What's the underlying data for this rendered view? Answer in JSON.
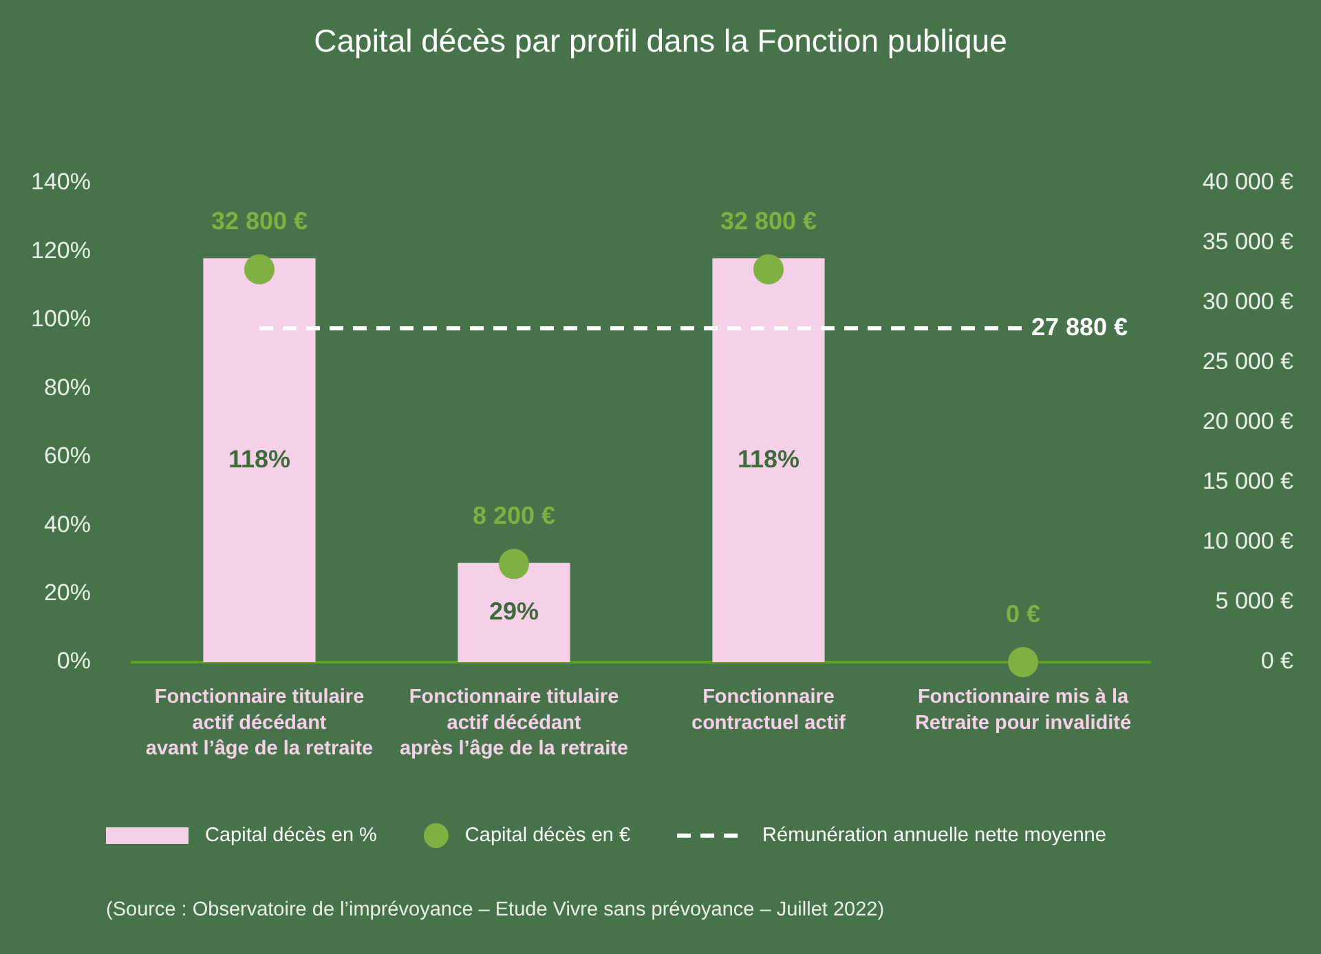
{
  "chart_data": {
    "type": "bar",
    "title": "Capital décès par profil dans la Fonction publique",
    "categories": [
      "Fonctionnaire titulaire\nactif décédant\navant l’âge de la retraite",
      "Fonctionnaire titulaire\nactif décédant\naprès l’âge de la retraite",
      "Fonctionnaire\ncontractuel actif",
      "Fonctionnaire mis à la\nRetraite pour invalidité"
    ],
    "series": [
      {
        "name": "Capital décès en %",
        "color": "#f6cfe9",
        "values": [
          118,
          29,
          118,
          null
        ],
        "value_labels": [
          "118%",
          "29%",
          "118%",
          null
        ]
      },
      {
        "name": "Capital décès en €",
        "type": "scatter",
        "color": "#7fb142",
        "marker": "circle",
        "axis": "y2",
        "values": [
          32800,
          8200,
          32800,
          0
        ],
        "value_labels": [
          "32 800 €",
          "8 200 €",
          "32 800 €",
          "0 €"
        ]
      },
      {
        "name": "Rémunération annuelle nette moyenne",
        "type": "line",
        "color": "#ffffff",
        "line_style": "dashed",
        "marker": "none",
        "axis": "y2",
        "values": [
          27880,
          27880,
          27880,
          27880
        ],
        "value_labels": [
          null,
          null,
          null,
          "27 880 €"
        ]
      }
    ],
    "ylim": [
      0,
      140
    ],
    "yticks": [
      {
        "value": 0,
        "label": "0%"
      },
      {
        "value": 20,
        "label": "20%"
      },
      {
        "value": 40,
        "label": "40%"
      },
      {
        "value": 60,
        "label": "60%"
      },
      {
        "value": 80,
        "label": "80%"
      },
      {
        "value": 100,
        "label": "100%"
      },
      {
        "value": 120,
        "label": "120%"
      },
      {
        "value": 140,
        "label": "140%"
      }
    ],
    "y2lim": [
      0,
      40000
    ],
    "y2ticks": [
      {
        "value": 0,
        "label": "0 €"
      },
      {
        "value": 5000,
        "label": "5 000 €"
      },
      {
        "value": 10000,
        "label": "10 000 €"
      },
      {
        "value": 15000,
        "label": "15 000 €"
      },
      {
        "value": 20000,
        "label": "20 000 €"
      },
      {
        "value": 25000,
        "label": "25 000 €"
      },
      {
        "value": 30000,
        "label": "30 000 €"
      },
      {
        "value": 35000,
        "label": "35 000 €"
      },
      {
        "value": 40000,
        "label": "40 000 €"
      }
    ],
    "legend": "bottom",
    "annotations": [
      "(Source : Observatoire de l’imprévoyance – Etude Vivre sans prévoyance – Juillet 2022)"
    ]
  }
}
